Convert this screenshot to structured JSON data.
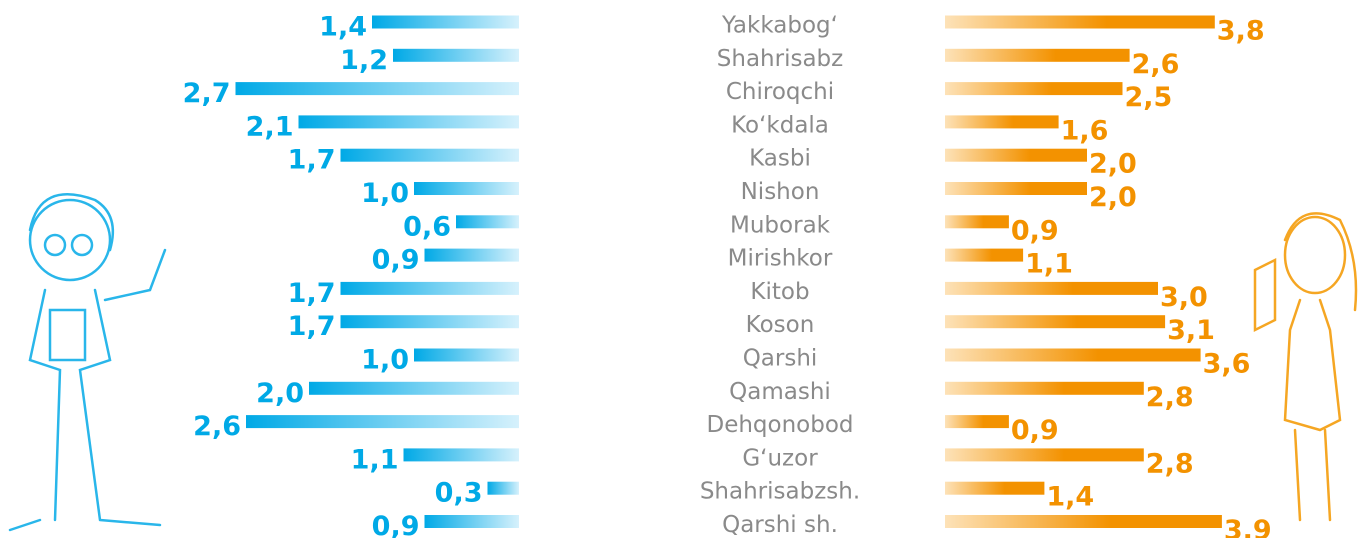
{
  "chart_data": {
    "type": "bar",
    "categories": [
      "Yakkabog‘",
      "Shahrisabz",
      "Chiroqchi",
      "Ko‘kdala",
      "Kasbi",
      "Nishon",
      "Muborak",
      "Mirishkor",
      "Kitob",
      "Koson",
      "Qarshi",
      "Qamashi",
      "Dehqonobod",
      "G‘uzor",
      "Shahrisabzsh.",
      "Qarshi sh."
    ],
    "series": [
      {
        "color": "#00a9e6",
        "values": [
          1.4,
          1.2,
          2.7,
          2.1,
          1.7,
          1.0,
          0.6,
          0.9,
          1.7,
          1.7,
          1.0,
          2.0,
          2.6,
          1.1,
          0.3,
          0.9
        ],
        "value_labels": [
          "1,4",
          "1,2",
          "2,7",
          "2,1",
          "1,7",
          "1,0",
          "0,6",
          "0,9",
          "1,7",
          "1,7",
          "1,0",
          "2,0",
          "2,6",
          "1,1",
          "0,3",
          "0,9"
        ]
      },
      {
        "color": "#f39200",
        "values": [
          3.8,
          2.6,
          2.5,
          1.6,
          2.0,
          2.0,
          0.9,
          1.1,
          3.0,
          3.1,
          3.6,
          2.8,
          0.9,
          2.8,
          1.4,
          3.9
        ],
        "value_labels": [
          "3,8",
          "2,6",
          "2,5",
          "1,6",
          "2,0",
          "2,0",
          "0,9",
          "1,1",
          "3,0",
          "3,1",
          "3,6",
          "2,8",
          "0,9",
          "2,8",
          "1,4",
          "3,9"
        ]
      }
    ]
  }
}
